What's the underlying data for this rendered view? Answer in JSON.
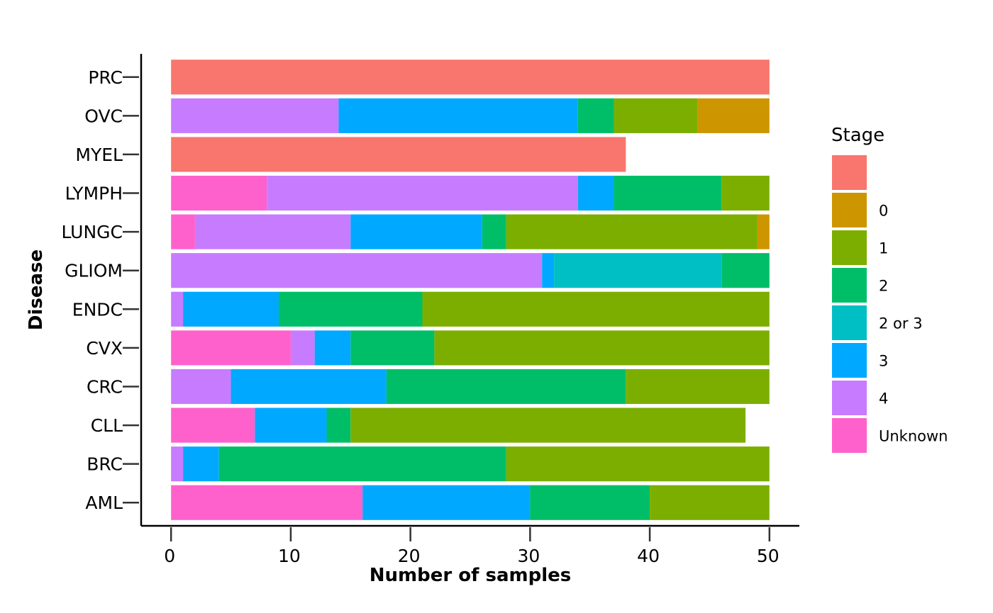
{
  "chart_data": {
    "type": "bar",
    "orientation": "horizontal",
    "stacked": true,
    "xlabel": "Number of samples",
    "ylabel": "Disease",
    "xlim": [
      -2.5,
      52.5
    ],
    "xticks": [
      0,
      10,
      20,
      30,
      40,
      50
    ],
    "grid": false,
    "legend_position": "right",
    "legend_title": "Stage",
    "categories": [
      "AML",
      "BRC",
      "CLL",
      "CRC",
      "CVX",
      "ENDC",
      "GLIOM",
      "LUNGC",
      "LYMPH",
      "MYEL",
      "OVC",
      "PRC"
    ],
    "series": [
      {
        "name": "",
        "color": "#F8766D",
        "values": [
          0,
          0,
          0,
          0,
          0,
          0,
          0,
          0,
          0,
          38,
          0,
          50
        ]
      },
      {
        "name": "0",
        "color": "#CD9600",
        "values": [
          0,
          0,
          0,
          0,
          0,
          0,
          0,
          1,
          0,
          0,
          6,
          0
        ]
      },
      {
        "name": "1",
        "color": "#7CAE00",
        "values": [
          10,
          22,
          33,
          12,
          28,
          29,
          0,
          21,
          4,
          0,
          7,
          0
        ]
      },
      {
        "name": "2",
        "color": "#00BE67",
        "values": [
          10,
          24,
          2,
          20,
          7,
          12,
          4,
          2,
          9,
          0,
          3,
          0
        ]
      },
      {
        "name": "2 or 3",
        "color": "#00BFC4",
        "values": [
          0,
          0,
          0,
          0,
          0,
          0,
          14,
          0,
          0,
          0,
          0,
          0
        ]
      },
      {
        "name": "3",
        "color": "#00A9FF",
        "values": [
          14,
          3,
          6,
          13,
          3,
          8,
          1,
          11,
          3,
          0,
          20,
          0
        ]
      },
      {
        "name": "4",
        "color": "#C77CFF",
        "values": [
          0,
          1,
          0,
          5,
          2,
          1,
          31,
          13,
          26,
          0,
          14,
          0
        ]
      },
      {
        "name": "Unknown",
        "color": "#FF61CC",
        "values": [
          16,
          0,
          7,
          0,
          10,
          0,
          0,
          2,
          8,
          0,
          0,
          0
        ]
      }
    ],
    "stack_order": [
      "Unknown",
      "4",
      "3",
      "2 or 3",
      "2",
      "1",
      "0",
      ""
    ]
  }
}
